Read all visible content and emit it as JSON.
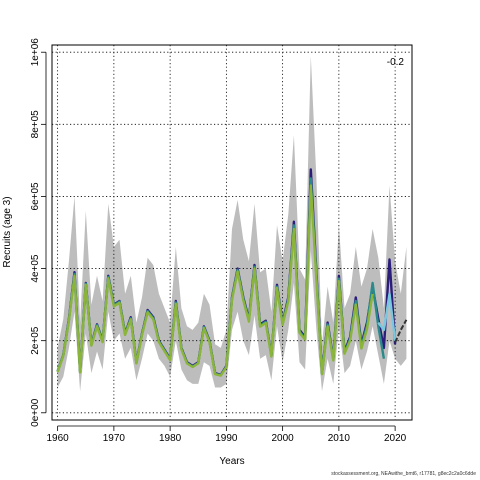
{
  "chart_data": {
    "type": "line",
    "title": "",
    "xlabel": "Years",
    "ylabel": "Recruits (age 3)",
    "xlim": [
      1959,
      2023
    ],
    "ylim": [
      -20000,
      1020000
    ],
    "x_ticks": [
      1960,
      1970,
      1980,
      1990,
      2000,
      2010,
      2020
    ],
    "y_ticks": [
      0,
      200000,
      400000,
      600000,
      800000,
      1000000
    ],
    "y_tick_labels": [
      "0e+00",
      "2e+05",
      "4e+05",
      "6e+05",
      "8e+05",
      "1e+06"
    ],
    "grid": true,
    "annotation": "-0.2",
    "uncertainty_band": {
      "color": "#bdbdbd",
      "x": [
        1960,
        1961,
        1962,
        1963,
        1964,
        1965,
        1966,
        1967,
        1968,
        1969,
        1970,
        1971,
        1972,
        1973,
        1974,
        1975,
        1976,
        1977,
        1978,
        1979,
        1980,
        1981,
        1982,
        1983,
        1984,
        1985,
        1986,
        1987,
        1988,
        1989,
        1990,
        1991,
        1992,
        1993,
        1994,
        1995,
        1996,
        1997,
        1998,
        1999,
        2000,
        2001,
        2002,
        2003,
        2004,
        2005,
        2006,
        2007,
        2008,
        2009,
        2010,
        2011,
        2012,
        2013,
        2014,
        2015,
        2016,
        2017,
        2018,
        2019,
        2020,
        2021,
        2022
      ],
      "upper": [
        180000,
        260000,
        420000,
        600000,
        250000,
        560000,
        300000,
        380000,
        310000,
        580000,
        460000,
        480000,
        330000,
        380000,
        250000,
        320000,
        430000,
        410000,
        330000,
        290000,
        250000,
        460000,
        290000,
        240000,
        230000,
        250000,
        330000,
        300000,
        190000,
        180000,
        230000,
        510000,
        590000,
        480000,
        420000,
        580000,
        390000,
        400000,
        280000,
        520000,
        420000,
        550000,
        770000,
        400000,
        370000,
        990000,
        650000,
        190000,
        350000,
        250000,
        520000,
        290000,
        330000,
        460000,
        350000,
        400000,
        510000,
        430000,
        290000,
        630000,
        420000,
        330000,
        460000
      ],
      "lower": [
        70000,
        100000,
        180000,
        280000,
        60000,
        220000,
        110000,
        170000,
        120000,
        280000,
        200000,
        220000,
        150000,
        180000,
        90000,
        150000,
        220000,
        200000,
        150000,
        130000,
        100000,
        200000,
        120000,
        90000,
        80000,
        80000,
        140000,
        130000,
        70000,
        70000,
        80000,
        230000,
        280000,
        200000,
        160000,
        270000,
        150000,
        160000,
        90000,
        240000,
        140000,
        230000,
        360000,
        140000,
        120000,
        450000,
        230000,
        60000,
        150000,
        80000,
        240000,
        110000,
        130000,
        200000,
        120000,
        170000,
        240000,
        160000,
        80000,
        200000,
        150000,
        130000,
        150000
      ]
    },
    "series": [
      {
        "color": "#2b1d7a",
        "x": [
          1960,
          1961,
          1962,
          1963,
          1964,
          1965,
          1966,
          1967,
          1968,
          1969,
          1970,
          1971,
          1972,
          1973,
          1974,
          1975,
          1976,
          1977,
          1978,
          1979,
          1980,
          1981,
          1982,
          1983,
          1984,
          1985,
          1986,
          1987,
          1988,
          1989,
          1990,
          1991,
          1992,
          1993,
          1994,
          1995,
          1996,
          1997,
          1998,
          1999,
          2000,
          2001,
          2002,
          2003,
          2004,
          2005,
          2006,
          2007,
          2008,
          2009,
          2010,
          2011,
          2012,
          2013,
          2014,
          2015,
          2016,
          2017,
          2018,
          2019,
          2020
        ],
        "values": [
          115000,
          160000,
          260000,
          390000,
          115000,
          360000,
          190000,
          245000,
          200000,
          380000,
          300000,
          310000,
          220000,
          265000,
          140000,
          220000,
          285000,
          265000,
          200000,
          175000,
          150000,
          310000,
          180000,
          140000,
          130000,
          140000,
          240000,
          200000,
          110000,
          105000,
          130000,
          320000,
          400000,
          320000,
          260000,
          410000,
          245000,
          255000,
          160000,
          355000,
          250000,
          320000,
          530000,
          230000,
          210000,
          675000,
          390000,
          110000,
          250000,
          150000,
          380000,
          170000,
          210000,
          320000,
          190000,
          250000,
          350000,
          260000,
          180000,
          425000,
          190000
        ]
      },
      {
        "color": "#2a8a8a",
        "x": [
          1960,
          1961,
          1962,
          1963,
          1964,
          1965,
          1966,
          1967,
          1968,
          1969,
          1970,
          1971,
          1972,
          1973,
          1974,
          1975,
          1976,
          1977,
          1978,
          1979,
          1980,
          1981,
          1982,
          1983,
          1984,
          1985,
          1986,
          1987,
          1988,
          1989,
          1990,
          1991,
          1992,
          1993,
          1994,
          1995,
          1996,
          1997,
          1998,
          1999,
          2000,
          2001,
          2002,
          2003,
          2004,
          2005,
          2006,
          2007,
          2008,
          2009,
          2010,
          2011,
          2012,
          2013,
          2014,
          2015,
          2016,
          2017,
          2018
        ],
        "values": [
          115000,
          160000,
          258000,
          385000,
          113000,
          358000,
          188000,
          243000,
          198000,
          377000,
          298000,
          308000,
          218000,
          262000,
          138000,
          218000,
          282000,
          262000,
          198000,
          173000,
          148000,
          306000,
          178000,
          138000,
          128000,
          138000,
          238000,
          198000,
          108000,
          104000,
          128000,
          318000,
          396000,
          316000,
          256000,
          405000,
          242000,
          252000,
          158000,
          350000,
          247000,
          315000,
          520000,
          226000,
          206000,
          650000,
          380000,
          108000,
          245000,
          147000,
          372000,
          167000,
          205000,
          310000,
          184000,
          242000,
          360000,
          240000,
          150000
        ]
      },
      {
        "color": "#8ab43a",
        "x": [
          1960,
          1961,
          1962,
          1963,
          1964,
          1965,
          1966,
          1967,
          1968,
          1969,
          1970,
          1971,
          1972,
          1973,
          1974,
          1975,
          1976,
          1977,
          1978,
          1979,
          1980,
          1981,
          1982,
          1983,
          1984,
          1985,
          1986,
          1987,
          1988,
          1989,
          1990,
          1991,
          1992,
          1993,
          1994,
          1995,
          1996,
          1997,
          1998,
          1999,
          2000,
          2001,
          2002,
          2003,
          2004,
          2005,
          2006,
          2007,
          2008,
          2009,
          2010,
          2011,
          2012,
          2013,
          2014,
          2015,
          2016
        ],
        "values": [
          113000,
          158000,
          255000,
          380000,
          112000,
          355000,
          186000,
          240000,
          196000,
          373000,
          295000,
          305000,
          216000,
          259000,
          137000,
          216000,
          279000,
          259000,
          196000,
          171000,
          146000,
          302000,
          176000,
          137000,
          127000,
          137000,
          235000,
          196000,
          107000,
          103000,
          127000,
          314000,
          392000,
          312000,
          253000,
          400000,
          239000,
          249000,
          156000,
          346000,
          244000,
          310000,
          510000,
          222000,
          203000,
          630000,
          370000,
          107000,
          240000,
          145000,
          365000,
          164000,
          200000,
          300000,
          178000,
          232000,
          330000
        ]
      },
      {
        "color": "#7ac8e0",
        "x": [
          2017,
          2018,
          2019,
          2020
        ],
        "values": [
          250000,
          230000,
          330000,
          200000
        ]
      },
      {
        "color": "#333333",
        "x": [
          2020,
          2021,
          2022
        ],
        "values": [
          195000,
          230000,
          258000
        ]
      }
    ]
  },
  "footer": "stockassessment.org, NEAwithe_bmt6, r17781, g8ec2c2a0c6dde"
}
